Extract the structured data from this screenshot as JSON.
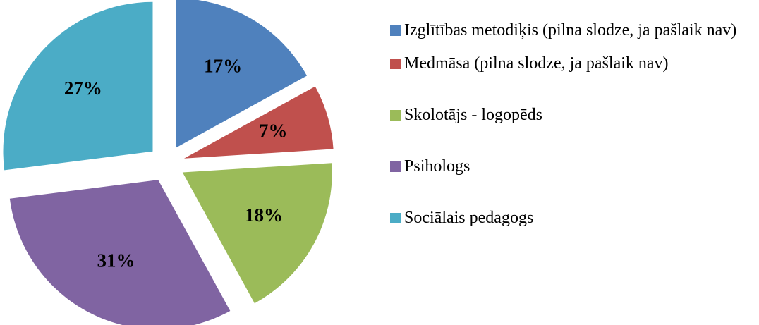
{
  "chart_data": {
    "type": "pie",
    "categories": [
      "Izglītības metodiķis (pilna slodze, ja pašlaik nav)",
      "Medmāsa (pilna slodze, ja pašlaik nav)",
      "Skolotājs - logopēds",
      "Psihologs",
      "Sociālais pedagogs"
    ],
    "values": [
      17,
      7,
      18,
      31,
      27
    ],
    "value_labels": [
      "17%",
      "7%",
      "18%",
      "31%",
      "27%"
    ],
    "colors": [
      "#4f81bd",
      "#c0504d",
      "#9bbb59",
      "#8064a2",
      "#4bacc6"
    ],
    "legend": "right"
  }
}
